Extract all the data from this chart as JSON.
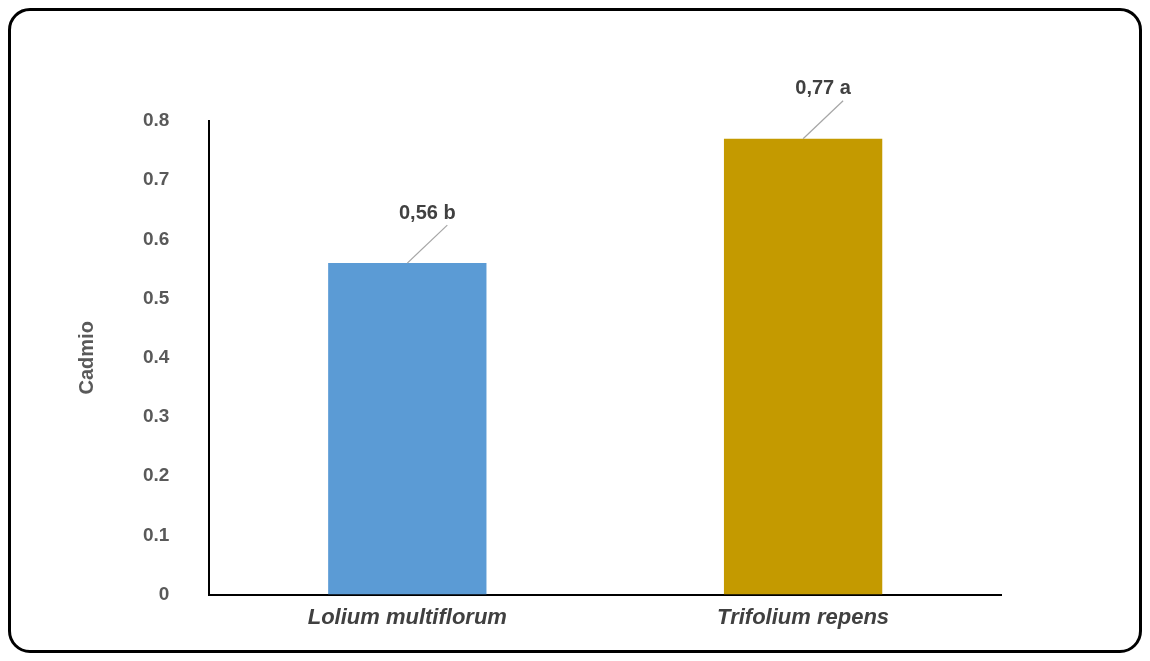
{
  "chart_data": {
    "type": "bar",
    "ylabel": "Cadmio",
    "categories": [
      "Lolium multiflorum",
      "Trifolium repens"
    ],
    "values": [
      0.56,
      0.77
    ],
    "colors": [
      "#5b9bd5",
      "#c49a00"
    ],
    "value_labels": [
      "0,56 b",
      "0,77 a"
    ],
    "ylim": [
      0,
      0.8
    ],
    "yticks": [
      0,
      0.1,
      0.2,
      0.3,
      0.4,
      0.5,
      0.6,
      0.7,
      0.8
    ],
    "grid": false,
    "legend": false
  }
}
